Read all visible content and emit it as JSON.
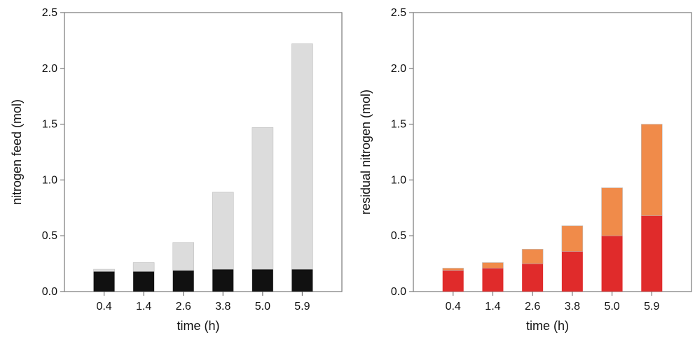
{
  "chart_data": [
    {
      "type": "bar",
      "stacked": true,
      "title": "",
      "xlabel": "time (h)",
      "ylabel": "nitrogen feed (mol)",
      "categories": [
        "0.4",
        "1.4",
        "2.6",
        "3.8",
        "5.0",
        "5.9"
      ],
      "ylim": [
        0,
        2.5
      ],
      "yticks": [
        "0.0",
        "0.5",
        "1.0",
        "1.5",
        "2.0",
        "2.5"
      ],
      "grid": false,
      "series": [
        {
          "values": [
            0.18,
            0.18,
            0.19,
            0.2,
            0.2,
            0.2
          ],
          "color": "#111111"
        },
        {
          "values": [
            0.02,
            0.08,
            0.25,
            0.69,
            1.27,
            2.02
          ],
          "color": "#dcdcdc"
        }
      ]
    },
    {
      "type": "bar",
      "stacked": true,
      "title": "",
      "xlabel": "time (h)",
      "ylabel": "residual nitrogen (mol)",
      "categories": [
        "0.4",
        "1.4",
        "2.6",
        "3.8",
        "5.0",
        "5.9"
      ],
      "ylim": [
        0,
        2.5
      ],
      "yticks": [
        "0.0",
        "0.5",
        "1.0",
        "1.5",
        "2.0",
        "2.5"
      ],
      "grid": false,
      "series": [
        {
          "values": [
            0.19,
            0.21,
            0.25,
            0.36,
            0.5,
            0.68
          ],
          "color": "#e02b2b"
        },
        {
          "values": [
            0.02,
            0.05,
            0.13,
            0.23,
            0.43,
            0.82
          ],
          "color": "#f08b4a"
        }
      ]
    }
  ]
}
